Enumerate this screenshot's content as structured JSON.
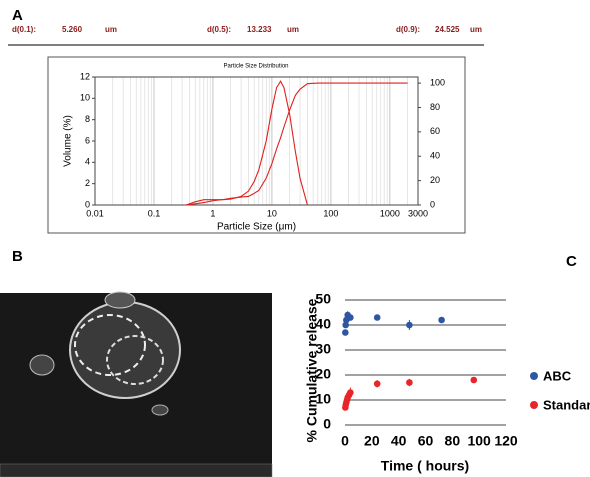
{
  "chart_data": [
    {
      "type": "line",
      "panel_label": "A",
      "title": "Particle Size Distribution",
      "summary": [
        {
          "label": "d(0.1):",
          "value": {
            "value": 5.26,
            "label": "5.260"
          },
          "unit": "um"
        },
        {
          "label": "d(0.5):",
          "value": 13.233,
          "unit": "um"
        },
        {
          "label": "d(0.9):",
          "value": 24.525,
          "unit": "um"
        }
      ],
      "x_label": "Particle Size (μm)",
      "y_label": "Volume (%)",
      "x_scale": "log",
      "grid": "x",
      "xlim": [
        0.01,
        3000
      ],
      "xticks": [
        0.01,
        0.1,
        1,
        10,
        100,
        1000,
        3000
      ],
      "ylim": [
        0,
        12
      ],
      "yticks": [
        0,
        2,
        4,
        6,
        8,
        10,
        12
      ],
      "y2lim": [
        0,
        105
      ],
      "y2ticks": [
        0,
        20,
        40,
        60,
        80,
        100
      ],
      "x": [
        0.35,
        0.5,
        0.7,
        1,
        1.5,
        2,
        3,
        4,
        5,
        6,
        8,
        10,
        12,
        14,
        16,
        20,
        25,
        30,
        40,
        60,
        100,
        300,
        1000,
        2000
      ],
      "series": [
        {
          "color": "#e0201c",
          "values": [
            0,
            0.3,
            0.5,
            0.5,
            0.5,
            0.55,
            0.8,
            1.3,
            2.2,
            3.3,
            6,
            9,
            11,
            11.6,
            11,
            8.5,
            5,
            2.5,
            0,
            null,
            null,
            null,
            null,
            null
          ]
        },
        {
          "color": "#e0201c",
          "axis": "y2",
          "values": [
            0,
            1,
            2,
            3.5,
            4.5,
            5.5,
            6.5,
            7,
            9.5,
            12,
            22,
            34,
            46,
            55,
            64,
            78,
            90,
            95,
            99.5,
            100,
            100,
            100,
            100,
            100
          ]
        }
      ]
    },
    {
      "type": "scatter",
      "panel_label": "C",
      "x_label": "Time ( hours)",
      "y_label": "% Cumulative release",
      "xlim": [
        0,
        120
      ],
      "xticks": [
        0,
        20,
        40,
        60,
        80,
        100,
        120
      ],
      "ylim": [
        0,
        50
      ],
      "yticks": [
        0,
        10,
        20,
        30,
        40,
        50
      ],
      "grid": "y",
      "series": [
        {
          "name": "ABC",
          "color": "#2f56a3",
          "x": [
            0.25,
            0.5,
            1,
            2,
            3,
            4,
            24,
            48,
            72
          ],
          "values": [
            37,
            40,
            42,
            44,
            43,
            43,
            43,
            40,
            42
          ],
          "errors": [
            1,
            1,
            1.5,
            1.5,
            1,
            1,
            1,
            2,
            1
          ]
        },
        {
          "name": "Standard",
          "color": "#e8262a",
          "x": [
            0.25,
            0.5,
            1,
            1.5,
            2,
            3,
            4,
            24,
            48,
            96
          ],
          "values": [
            7,
            8,
            9,
            10,
            11,
            12,
            13,
            16.5,
            17,
            18
          ],
          "errors": [
            1,
            1,
            1.5,
            1.5,
            1.5,
            2,
            2,
            1.5,
            1.5,
            0.5
          ]
        }
      ]
    }
  ],
  "image_panel": {
    "panel_label": "B"
  }
}
